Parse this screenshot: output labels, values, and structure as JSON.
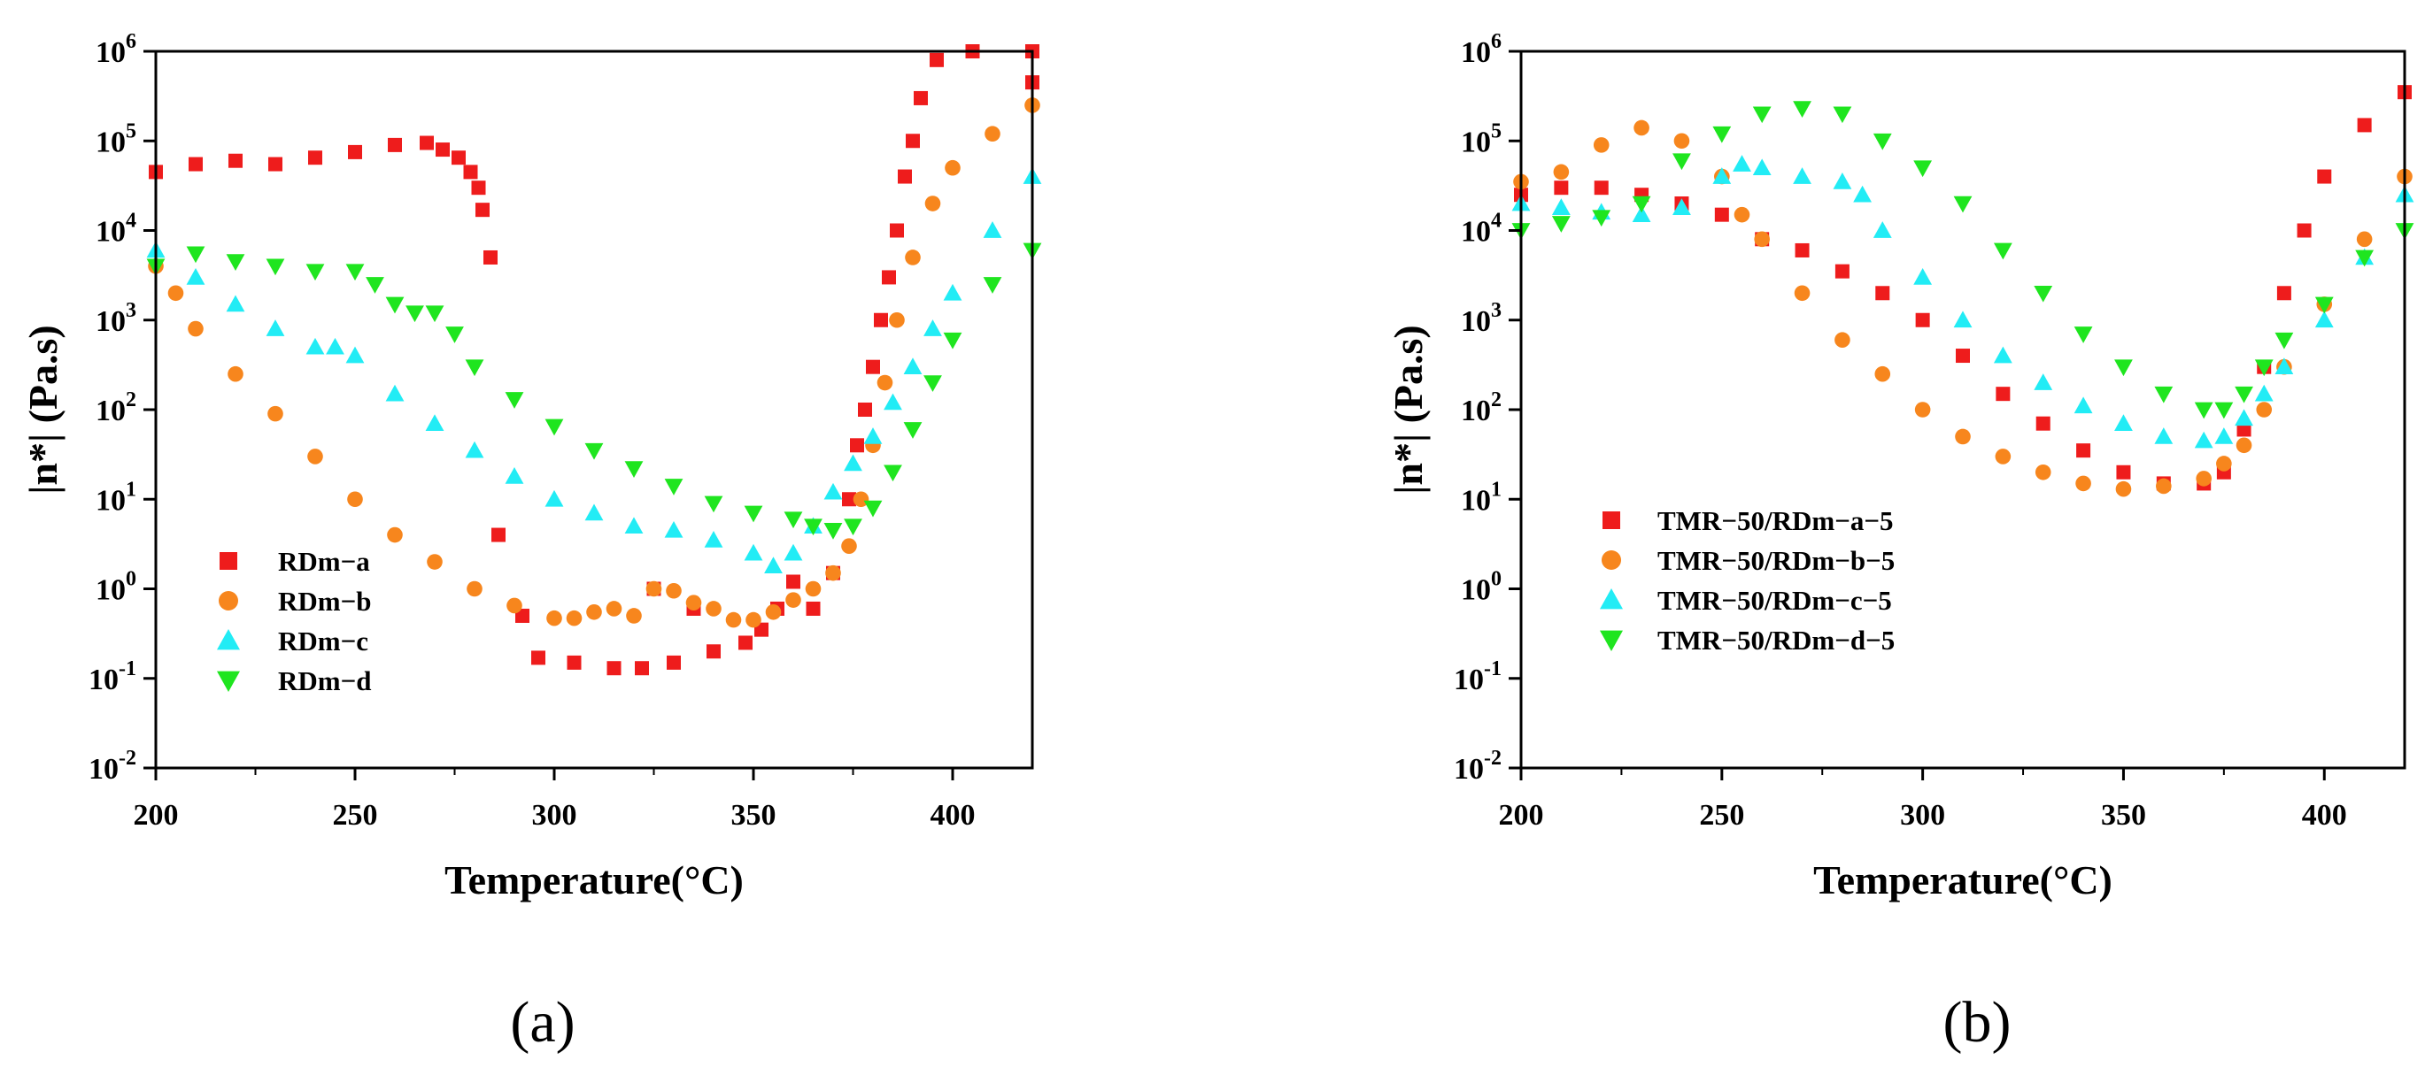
{
  "figure": {
    "colors": {
      "a": "#ee1c1c",
      "b": "#f7861d",
      "c": "#22ecf5",
      "d": "#1fe51f"
    }
  },
  "chart_data": [
    {
      "type": "scatter",
      "panel_label": "(a)",
      "xlabel": "Temperature(°C)",
      "ylabel": "|n*| (Pa.s)",
      "xlim": [
        200,
        420
      ],
      "ylim": [
        0.01,
        1000000
      ],
      "yscale": "log",
      "x_ticks": [
        200,
        250,
        300,
        350,
        400
      ],
      "x_tick_labels": [
        "200",
        "250",
        "300",
        "350",
        "400"
      ],
      "y_tick_exponents": [
        "-2",
        "-1",
        "0",
        "1",
        "2",
        "3",
        "4",
        "5",
        "6"
      ],
      "y_tick_base": "10",
      "legend_position": "lower-left",
      "series": [
        {
          "name": "RDm−a",
          "marker": "square",
          "color_key": "a",
          "points": [
            [
              200,
              45000
            ],
            [
              210,
              55000
            ],
            [
              220,
              60000
            ],
            [
              230,
              55000
            ],
            [
              240,
              65000
            ],
            [
              250,
              75000
            ],
            [
              260,
              90000
            ],
            [
              268,
              95000
            ],
            [
              272,
              80000
            ],
            [
              276,
              65000
            ],
            [
              279,
              45000
            ],
            [
              281,
              30000
            ],
            [
              282,
              17000
            ],
            [
              284,
              5000
            ],
            [
              286,
              4
            ],
            [
              292,
              0.5
            ],
            [
              296,
              0.17
            ],
            [
              305,
              0.15
            ],
            [
              315,
              0.13
            ],
            [
              322,
              0.13
            ],
            [
              325,
              1.0
            ],
            [
              330,
              0.15
            ],
            [
              335,
              0.6
            ],
            [
              340,
              0.2
            ],
            [
              348,
              0.25
            ],
            [
              352,
              0.35
            ],
            [
              356,
              0.6
            ],
            [
              360,
              1.2
            ],
            [
              365,
              0.6
            ],
            [
              370,
              1.5
            ],
            [
              374,
              10
            ],
            [
              376,
              40
            ],
            [
              378,
              100
            ],
            [
              380,
              300
            ],
            [
              382,
              1000
            ],
            [
              384,
              3000
            ],
            [
              386,
              10000
            ],
            [
              388,
              40000
            ],
            [
              390,
              100000
            ],
            [
              392,
              300000
            ],
            [
              396,
              800000
            ],
            [
              405,
              1000000
            ],
            [
              420,
              1000000
            ],
            [
              420,
              450000
            ]
          ]
        },
        {
          "name": "RDm−b",
          "marker": "circle",
          "color_key": "b",
          "points": [
            [
              200,
              4000
            ],
            [
              205,
              2000
            ],
            [
              210,
              800
            ],
            [
              220,
              250
            ],
            [
              230,
              90
            ],
            [
              240,
              30
            ],
            [
              250,
              10
            ],
            [
              260,
              4
            ],
            [
              270,
              2
            ],
            [
              280,
              1
            ],
            [
              290,
              0.65
            ],
            [
              300,
              0.47
            ],
            [
              305,
              0.47
            ],
            [
              310,
              0.55
            ],
            [
              315,
              0.6
            ],
            [
              320,
              0.5
            ],
            [
              325,
              1.0
            ],
            [
              330,
              0.95
            ],
            [
              335,
              0.7
            ],
            [
              340,
              0.6
            ],
            [
              345,
              0.45
            ],
            [
              350,
              0.45
            ],
            [
              355,
              0.55
            ],
            [
              360,
              0.75
            ],
            [
              365,
              1.0
            ],
            [
              370,
              1.5
            ],
            [
              374,
              3
            ],
            [
              377,
              10
            ],
            [
              380,
              40
            ],
            [
              383,
              200
            ],
            [
              386,
              1000
            ],
            [
              390,
              5000
            ],
            [
              395,
              20000
            ],
            [
              400,
              50000
            ],
            [
              410,
              120000
            ],
            [
              420,
              250000
            ]
          ]
        },
        {
          "name": "RDm−c",
          "marker": "triangle-up",
          "color_key": "c",
          "points": [
            [
              200,
              6000
            ],
            [
              210,
              3000
            ],
            [
              220,
              1500
            ],
            [
              230,
              800
            ],
            [
              240,
              500
            ],
            [
              245,
              500
            ],
            [
              250,
              400
            ],
            [
              260,
              150
            ],
            [
              270,
              70
            ],
            [
              280,
              35
            ],
            [
              290,
              18
            ],
            [
              300,
              10
            ],
            [
              310,
              7
            ],
            [
              320,
              5
            ],
            [
              330,
              4.5
            ],
            [
              340,
              3.5
            ],
            [
              350,
              2.5
            ],
            [
              355,
              1.8
            ],
            [
              360,
              2.5
            ],
            [
              365,
              5
            ],
            [
              370,
              12
            ],
            [
              375,
              25
            ],
            [
              380,
              50
            ],
            [
              385,
              120
            ],
            [
              390,
              300
            ],
            [
              395,
              800
            ],
            [
              400,
              2000
            ],
            [
              410,
              10000
            ],
            [
              420,
              40000
            ]
          ]
        },
        {
          "name": "RDm−d",
          "marker": "triangle-down",
          "color_key": "d",
          "points": [
            [
              200,
              4000
            ],
            [
              210,
              5500
            ],
            [
              220,
              4500
            ],
            [
              230,
              4000
            ],
            [
              240,
              3500
            ],
            [
              250,
              3500
            ],
            [
              255,
              2500
            ],
            [
              260,
              1500
            ],
            [
              265,
              1200
            ],
            [
              270,
              1200
            ],
            [
              275,
              700
            ],
            [
              280,
              300
            ],
            [
              290,
              130
            ],
            [
              300,
              65
            ],
            [
              310,
              35
            ],
            [
              320,
              22
            ],
            [
              330,
              14
            ],
            [
              340,
              9
            ],
            [
              350,
              7
            ],
            [
              360,
              6
            ],
            [
              365,
              5
            ],
            [
              370,
              4.5
            ],
            [
              375,
              5
            ],
            [
              380,
              8
            ],
            [
              385,
              20
            ],
            [
              390,
              60
            ],
            [
              395,
              200
            ],
            [
              400,
              600
            ],
            [
              410,
              2500
            ],
            [
              420,
              6000
            ]
          ]
        }
      ]
    },
    {
      "type": "scatter",
      "panel_label": "(b)",
      "xlabel": "Temperature(°C)",
      "ylabel": "|n*| (Pa.s)",
      "xlim": [
        200,
        420
      ],
      "ylim": [
        0.01,
        1000000
      ],
      "yscale": "log",
      "x_ticks": [
        200,
        250,
        300,
        350,
        400
      ],
      "x_tick_labels": [
        "200",
        "250",
        "300",
        "350",
        "400"
      ],
      "y_tick_exponents": [
        "-2",
        "-1",
        "0",
        "1",
        "2",
        "3",
        "4",
        "5",
        "6"
      ],
      "y_tick_base": "10",
      "legend_position": "center-left",
      "series": [
        {
          "name": "TMR−50/RDm−a−5",
          "marker": "square",
          "color_key": "a",
          "points": [
            [
              200,
              25000
            ],
            [
              210,
              30000
            ],
            [
              220,
              30000
            ],
            [
              230,
              25000
            ],
            [
              240,
              20000
            ],
            [
              250,
              15000
            ],
            [
              260,
              8000
            ],
            [
              270,
              6000
            ],
            [
              280,
              3500
            ],
            [
              290,
              2000
            ],
            [
              300,
              1000
            ],
            [
              310,
              400
            ],
            [
              320,
              150
            ],
            [
              330,
              70
            ],
            [
              340,
              35
            ],
            [
              350,
              20
            ],
            [
              360,
              15
            ],
            [
              370,
              15
            ],
            [
              375,
              20
            ],
            [
              380,
              60
            ],
            [
              385,
              300
            ],
            [
              390,
              2000
            ],
            [
              395,
              10000
            ],
            [
              400,
              40000
            ],
            [
              410,
              150000
            ],
            [
              420,
              350000
            ]
          ]
        },
        {
          "name": "TMR−50/RDm−b−5",
          "marker": "circle",
          "color_key": "b",
          "points": [
            [
              200,
              35000
            ],
            [
              210,
              45000
            ],
            [
              220,
              90000
            ],
            [
              230,
              140000
            ],
            [
              240,
              100000
            ],
            [
              250,
              40000
            ],
            [
              255,
              15000
            ],
            [
              260,
              8000
            ],
            [
              270,
              2000
            ],
            [
              280,
              600
            ],
            [
              290,
              250
            ],
            [
              300,
              100
            ],
            [
              310,
              50
            ],
            [
              320,
              30
            ],
            [
              330,
              20
            ],
            [
              340,
              15
            ],
            [
              350,
              13
            ],
            [
              360,
              14
            ],
            [
              370,
              17
            ],
            [
              375,
              25
            ],
            [
              380,
              40
            ],
            [
              385,
              100
            ],
            [
              390,
              300
            ],
            [
              400,
              1500
            ],
            [
              410,
              8000
            ],
            [
              420,
              40000
            ]
          ]
        },
        {
          "name": "TMR−50/RDm−c−5",
          "marker": "triangle-up",
          "color_key": "c",
          "points": [
            [
              200,
              20000
            ],
            [
              210,
              18000
            ],
            [
              220,
              16000
            ],
            [
              230,
              15000
            ],
            [
              240,
              18000
            ],
            [
              250,
              40000
            ],
            [
              255,
              55000
            ],
            [
              260,
              50000
            ],
            [
              270,
              40000
            ],
            [
              280,
              35000
            ],
            [
              285,
              25000
            ],
            [
              290,
              10000
            ],
            [
              300,
              3000
            ],
            [
              310,
              1000
            ],
            [
              320,
              400
            ],
            [
              330,
              200
            ],
            [
              340,
              110
            ],
            [
              350,
              70
            ],
            [
              360,
              50
            ],
            [
              370,
              45
            ],
            [
              375,
              50
            ],
            [
              380,
              80
            ],
            [
              385,
              150
            ],
            [
              390,
              300
            ],
            [
              400,
              1000
            ],
            [
              410,
              5000
            ],
            [
              420,
              25000
            ]
          ]
        },
        {
          "name": "TMR−50/RDm−d−5",
          "marker": "triangle-down",
          "color_key": "d",
          "points": [
            [
              200,
              10000
            ],
            [
              210,
              12000
            ],
            [
              220,
              14000
            ],
            [
              230,
              20000
            ],
            [
              240,
              60000
            ],
            [
              250,
              120000
            ],
            [
              260,
              200000
            ],
            [
              270,
              230000
            ],
            [
              280,
              200000
            ],
            [
              290,
              100000
            ],
            [
              300,
              50000
            ],
            [
              310,
              20000
            ],
            [
              320,
              6000
            ],
            [
              330,
              2000
            ],
            [
              340,
              700
            ],
            [
              350,
              300
            ],
            [
              360,
              150
            ],
            [
              370,
              100
            ],
            [
              375,
              100
            ],
            [
              380,
              150
            ],
            [
              385,
              300
            ],
            [
              390,
              600
            ],
            [
              400,
              1500
            ],
            [
              410,
              5000
            ],
            [
              420,
              10000
            ]
          ]
        }
      ]
    }
  ]
}
